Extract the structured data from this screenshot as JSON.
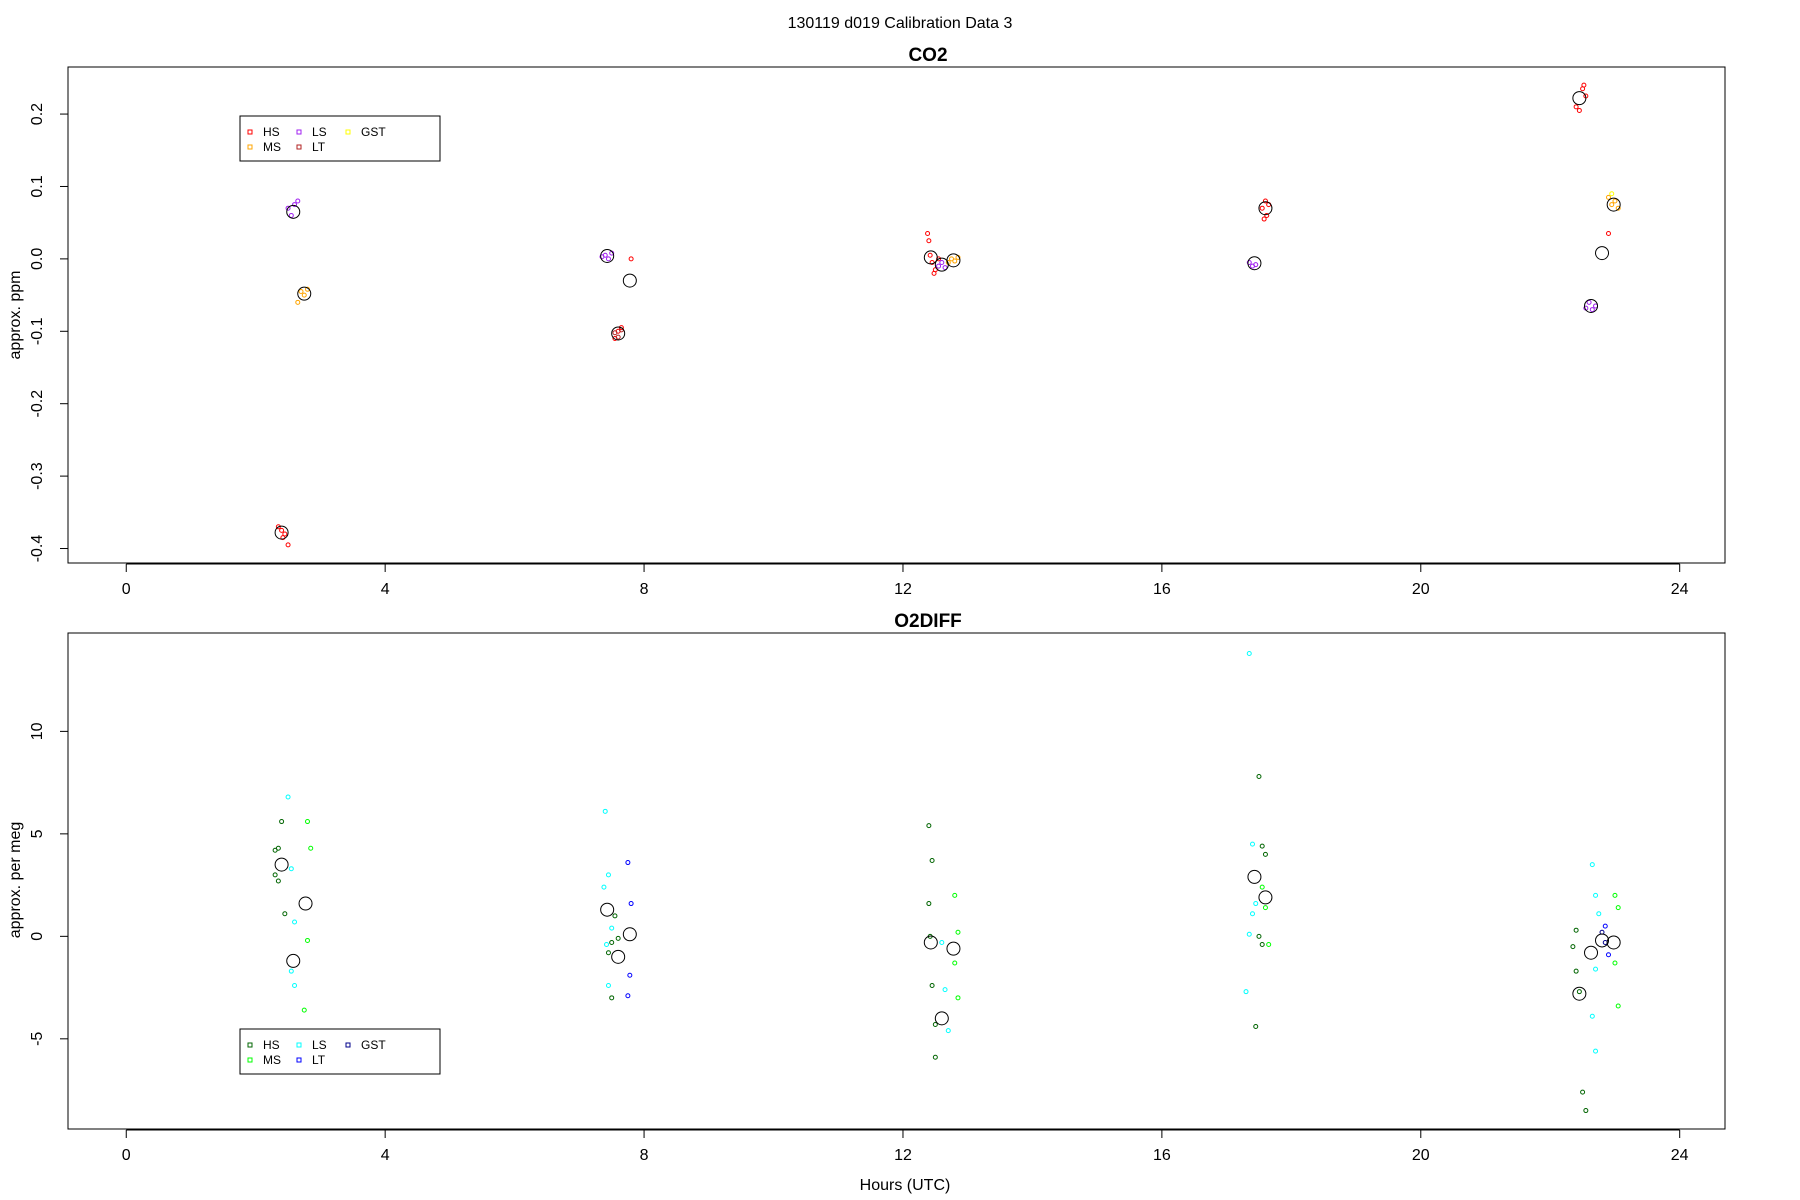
{
  "figure_title": "130119   d019   Calibration Data 3",
  "chart_data": [
    {
      "type": "scatter",
      "title": "CO2",
      "xlabel": "",
      "ylabel": "approx. ppm",
      "xlim": [
        -0.9,
        24.7
      ],
      "ylim": [
        -0.42,
        0.265
      ],
      "xticks": [
        "0",
        "4",
        "8",
        "12",
        "16",
        "20",
        "24"
      ],
      "yticks": [
        "-0.4",
        "-0.3",
        "-0.2",
        "-0.1",
        "0.0",
        "0.1",
        "0.2"
      ],
      "legend": {
        "placement": "top-left",
        "entries": [
          {
            "label": "HS",
            "color": "#FF0000"
          },
          {
            "label": "MS",
            "color": "#FFA500"
          },
          {
            "label": "LS",
            "color": "#A020F0"
          },
          {
            "label": "LT",
            "color": "#B22222"
          },
          {
            "label": "GST",
            "color": "#FFFF00"
          }
        ]
      },
      "series": [
        {
          "name": "HS",
          "color": "#FF0000",
          "points": [
            [
              2.35,
              -0.37
            ],
            [
              2.4,
              -0.375
            ],
            [
              2.45,
              -0.38
            ],
            [
              2.5,
              -0.395
            ],
            [
              2.42,
              -0.385
            ],
            [
              7.6,
              -0.1
            ],
            [
              7.65,
              -0.095
            ],
            [
              7.55,
              -0.11
            ],
            [
              7.8,
              0.0
            ],
            [
              12.38,
              0.035
            ],
            [
              12.4,
              0.025
            ],
            [
              12.42,
              0.005
            ],
            [
              12.45,
              -0.005
            ],
            [
              12.48,
              -0.02
            ],
            [
              12.5,
              -0.015
            ],
            [
              12.55,
              0.0
            ],
            [
              17.55,
              0.07
            ],
            [
              17.6,
              0.08
            ],
            [
              17.62,
              0.06
            ],
            [
              17.58,
              0.055
            ],
            [
              17.65,
              0.075
            ],
            [
              22.4,
              0.21
            ],
            [
              22.45,
              0.205
            ],
            [
              22.5,
              0.235
            ],
            [
              22.52,
              0.24
            ],
            [
              22.55,
              0.225
            ],
            [
              22.9,
              0.035
            ]
          ]
        },
        {
          "name": "MS",
          "color": "#FFA500",
          "points": [
            [
              2.7,
              -0.045
            ],
            [
              2.75,
              -0.05
            ],
            [
              2.8,
              -0.042
            ],
            [
              2.65,
              -0.06
            ],
            [
              12.7,
              -0.005
            ],
            [
              12.75,
              0.0
            ],
            [
              12.8,
              -0.003
            ],
            [
              12.85,
              0.002
            ],
            [
              22.95,
              0.075
            ],
            [
              23.0,
              0.08
            ],
            [
              23.05,
              0.07
            ],
            [
              22.9,
              0.085
            ]
          ]
        },
        {
          "name": "LS",
          "color": "#A020F0",
          "points": [
            [
              2.5,
              0.07
            ],
            [
              2.55,
              0.06
            ],
            [
              2.6,
              0.075
            ],
            [
              2.65,
              0.08
            ],
            [
              7.4,
              0.005
            ],
            [
              7.45,
              0.0
            ],
            [
              7.5,
              0.008
            ],
            [
              7.35,
              0.003
            ],
            [
              12.55,
              -0.01
            ],
            [
              12.6,
              -0.005
            ],
            [
              12.65,
              -0.012
            ],
            [
              17.35,
              -0.005
            ],
            [
              17.4,
              -0.01
            ],
            [
              17.45,
              -0.008
            ],
            [
              22.6,
              -0.06
            ],
            [
              22.65,
              -0.07
            ],
            [
              22.7,
              -0.065
            ],
            [
              22.55,
              -0.068
            ]
          ]
        },
        {
          "name": "LT",
          "color": "#B22222",
          "points": [
            [
              7.55,
              -0.102
            ],
            [
              7.6,
              -0.108
            ],
            [
              7.65,
              -0.098
            ]
          ]
        },
        {
          "name": "GST",
          "color": "#FFFF00",
          "points": [
            [
              22.95,
              0.09
            ]
          ]
        },
        {
          "name": "",
          "color": "#000000",
          "large": true,
          "points": [
            [
              2.4,
              -0.378
            ],
            [
              2.58,
              0.065
            ],
            [
              2.75,
              -0.048
            ],
            [
              7.43,
              0.004
            ],
            [
              7.6,
              -0.103
            ],
            [
              7.78,
              -0.03
            ],
            [
              12.43,
              0.002
            ],
            [
              12.6,
              -0.008
            ],
            [
              12.78,
              -0.002
            ],
            [
              17.43,
              -0.006
            ],
            [
              17.6,
              0.07
            ],
            [
              22.45,
              0.222
            ],
            [
              22.63,
              -0.065
            ],
            [
              22.8,
              0.008
            ],
            [
              22.98,
              0.075
            ]
          ]
        }
      ]
    },
    {
      "type": "scatter",
      "title": "O2DIFF",
      "xlabel": "Hours (UTC)",
      "ylabel": "approx. per meg",
      "xlim": [
        -0.9,
        24.7
      ],
      "ylim": [
        -9.4,
        14.8
      ],
      "xticks": [
        "0",
        "4",
        "8",
        "12",
        "16",
        "20",
        "24"
      ],
      "yticks": [
        "-5",
        "0",
        "5",
        "10"
      ],
      "legend": {
        "placement": "bottom-left",
        "entries": [
          {
            "label": "HS",
            "color": "#006400"
          },
          {
            "label": "MS",
            "color": "#00FF00"
          },
          {
            "label": "LS",
            "color": "#00FFFF"
          },
          {
            "label": "LT",
            "color": "#0000FF"
          },
          {
            "label": "GST",
            "color": "#00008B"
          }
        ]
      },
      "series": [
        {
          "name": "HS",
          "color": "#006400",
          "points": [
            [
              2.3,
              4.2
            ],
            [
              2.35,
              4.3
            ],
            [
              2.4,
              5.6
            ],
            [
              2.3,
              3.0
            ],
            [
              2.35,
              2.7
            ],
            [
              2.45,
              1.1
            ],
            [
              7.55,
              1.0
            ],
            [
              7.6,
              -0.1
            ],
            [
              7.5,
              -0.3
            ],
            [
              7.45,
              -0.8
            ],
            [
              7.5,
              -3.0
            ],
            [
              12.4,
              5.4
            ],
            [
              12.45,
              3.7
            ],
            [
              12.4,
              1.6
            ],
            [
              12.42,
              0.0
            ],
            [
              12.45,
              -2.4
            ],
            [
              12.5,
              -4.3
            ],
            [
              12.5,
              -5.9
            ],
            [
              17.5,
              7.8
            ],
            [
              17.55,
              4.4
            ],
            [
              17.6,
              4.0
            ],
            [
              17.5,
              0.0
            ],
            [
              17.55,
              -0.4
            ],
            [
              17.45,
              -4.4
            ],
            [
              22.4,
              0.3
            ],
            [
              22.35,
              -0.5
            ],
            [
              22.4,
              -1.7
            ],
            [
              22.45,
              -2.7
            ],
            [
              22.5,
              -7.6
            ],
            [
              22.55,
              -8.5
            ]
          ]
        },
        {
          "name": "MS",
          "color": "#00FF00",
          "points": [
            [
              2.8,
              5.6
            ],
            [
              2.85,
              4.3
            ],
            [
              2.8,
              -0.2
            ],
            [
              2.75,
              -3.6
            ],
            [
              12.8,
              2.0
            ],
            [
              12.85,
              0.2
            ],
            [
              12.8,
              -1.3
            ],
            [
              12.85,
              -3.0
            ],
            [
              17.6,
              1.4
            ],
            [
              17.65,
              -0.4
            ],
            [
              17.55,
              2.4
            ],
            [
              23.0,
              2.0
            ],
            [
              23.05,
              1.4
            ],
            [
              23.0,
              -1.3
            ],
            [
              23.05,
              -3.4
            ]
          ]
        },
        {
          "name": "LS",
          "color": "#00FFFF",
          "points": [
            [
              2.5,
              6.8
            ],
            [
              2.55,
              3.3
            ],
            [
              2.6,
              0.7
            ],
            [
              2.55,
              -1.7
            ],
            [
              2.6,
              -2.4
            ],
            [
              7.4,
              6.1
            ],
            [
              7.45,
              3.0
            ],
            [
              7.38,
              2.4
            ],
            [
              7.5,
              0.4
            ],
            [
              7.42,
              -0.4
            ],
            [
              7.45,
              -2.4
            ],
            [
              12.6,
              -0.3
            ],
            [
              12.65,
              -2.6
            ],
            [
              12.7,
              -4.6
            ],
            [
              17.35,
              13.8
            ],
            [
              17.4,
              4.5
            ],
            [
              17.45,
              1.6
            ],
            [
              17.35,
              0.1
            ],
            [
              17.3,
              -2.7
            ],
            [
              17.4,
              1.1
            ],
            [
              22.65,
              3.5
            ],
            [
              22.7,
              2.0
            ],
            [
              22.75,
              1.1
            ],
            [
              22.7,
              -1.6
            ],
            [
              22.65,
              -3.9
            ],
            [
              22.7,
              -5.6
            ]
          ]
        },
        {
          "name": "LT",
          "color": "#0000FF",
          "points": [
            [
              7.75,
              3.6
            ],
            [
              7.8,
              1.6
            ],
            [
              7.78,
              -1.9
            ],
            [
              7.75,
              -2.9
            ],
            [
              22.85,
              0.5
            ],
            [
              22.9,
              -0.9
            ]
          ]
        },
        {
          "name": "GST",
          "color": "#00008B",
          "points": [
            [
              22.8,
              0.2
            ],
            [
              22.85,
              -0.3
            ]
          ]
        },
        {
          "name": "",
          "color": "#000000",
          "large": true,
          "points": [
            [
              2.4,
              3.5
            ],
            [
              2.58,
              -1.2
            ],
            [
              2.77,
              1.6
            ],
            [
              7.43,
              1.3
            ],
            [
              7.6,
              -1.0
            ],
            [
              7.78,
              0.1
            ],
            [
              12.43,
              -0.3
            ],
            [
              12.6,
              -4.0
            ],
            [
              12.78,
              -0.6
            ],
            [
              17.43,
              2.9
            ],
            [
              17.6,
              1.9
            ],
            [
              22.45,
              -2.8
            ],
            [
              22.63,
              -0.8
            ],
            [
              22.8,
              -0.2
            ],
            [
              22.98,
              -0.3
            ]
          ]
        }
      ]
    }
  ]
}
